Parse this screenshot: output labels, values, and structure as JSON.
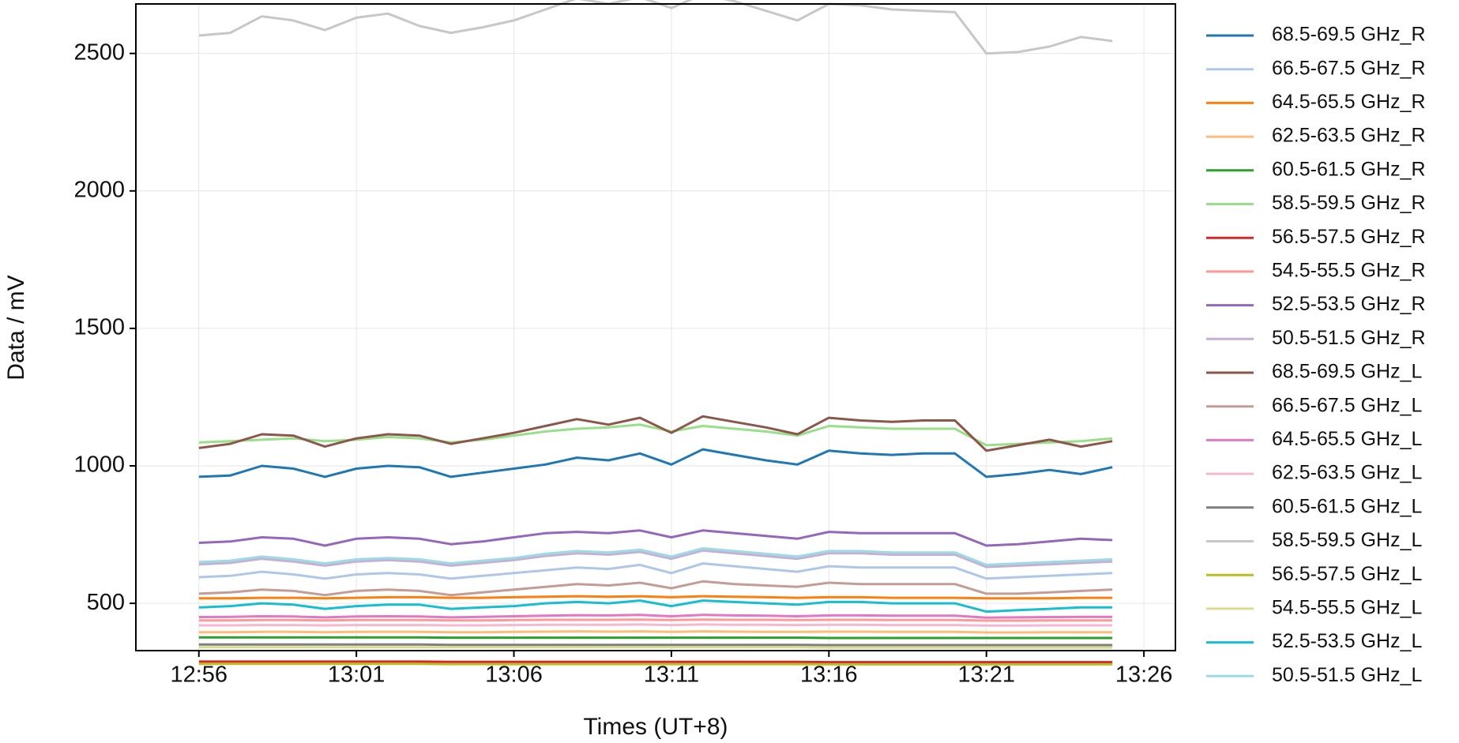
{
  "chart_data": {
    "type": "line",
    "xlabel": "Times (UT+8)",
    "ylabel": "Data / mV",
    "x": [
      "12:56",
      "12:57",
      "12:58",
      "12:59",
      "13:00",
      "13:01",
      "13:02",
      "13:03",
      "13:04",
      "13:05",
      "13:06",
      "13:07",
      "13:08",
      "13:09",
      "13:10",
      "13:11",
      "13:12",
      "13:13",
      "13:14",
      "13:15",
      "13:16",
      "13:17",
      "13:18",
      "13:19",
      "13:20",
      "13:21",
      "13:22",
      "13:23",
      "13:24",
      "13:25"
    ],
    "xlim": [
      "12:54",
      "13:27"
    ],
    "xticks": [
      "12:56",
      "13:01",
      "13:06",
      "13:11",
      "13:16",
      "13:21",
      "13:26"
    ],
    "ylim": [
      328,
      2680
    ],
    "yticks": [
      500,
      1000,
      1500,
      2000,
      2500
    ],
    "grid": true,
    "legend": "right",
    "series": [
      {
        "name": "68.5-69.5 GHz_R",
        "color": "#1f77b4",
        "values": [
          960,
          965,
          1000,
          990,
          960,
          990,
          1000,
          995,
          960,
          975,
          990,
          1005,
          1030,
          1020,
          1045,
          1005,
          1060,
          1040,
          1020,
          1005,
          1055,
          1045,
          1040,
          1045,
          1045,
          960,
          970,
          985,
          970,
          995
        ]
      },
      {
        "name": "66.5-67.5 GHz_R",
        "color": "#aec7e8",
        "values": [
          595,
          600,
          615,
          605,
          590,
          605,
          610,
          605,
          590,
          600,
          610,
          620,
          630,
          625,
          640,
          610,
          645,
          635,
          625,
          615,
          635,
          630,
          630,
          630,
          630,
          590,
          595,
          600,
          605,
          610
        ]
      },
      {
        "name": "64.5-65.5 GHz_R",
        "color": "#ff7f0e",
        "values": [
          518,
          518,
          520,
          520,
          518,
          520,
          522,
          522,
          520,
          520,
          522,
          524,
          526,
          524,
          526,
          522,
          526,
          524,
          522,
          520,
          522,
          522,
          520,
          520,
          520,
          518,
          518,
          518,
          520,
          520
        ]
      },
      {
        "name": "62.5-63.5 GHz_R",
        "color": "#ffbb78",
        "values": [
          395,
          395,
          396,
          396,
          395,
          396,
          396,
          396,
          395,
          395,
          396,
          397,
          398,
          397,
          398,
          396,
          398,
          397,
          396,
          396,
          397,
          397,
          396,
          396,
          396,
          394,
          394,
          395,
          395,
          395
        ]
      },
      {
        "name": "60.5-61.5 GHz_R",
        "color": "#2ca02c",
        "values": [
          376,
          376,
          376,
          376,
          376,
          376,
          376,
          376,
          375,
          375,
          375,
          375,
          375,
          375,
          375,
          375,
          375,
          375,
          375,
          375,
          374,
          374,
          374,
          374,
          374,
          374,
          374,
          374,
          374,
          374
        ]
      },
      {
        "name": "58.5-59.5 GHz_R",
        "color": "#98df8a",
        "values": [
          1085,
          1090,
          1095,
          1100,
          1090,
          1095,
          1105,
          1100,
          1085,
          1095,
          1110,
          1125,
          1135,
          1140,
          1150,
          1125,
          1145,
          1135,
          1125,
          1110,
          1145,
          1140,
          1135,
          1135,
          1135,
          1075,
          1080,
          1085,
          1090,
          1100
        ]
      },
      {
        "name": "56.5-57.5 GHz_R",
        "color": "#d62728",
        "values": [
          288,
          288,
          288,
          288,
          288,
          288,
          288,
          288,
          287,
          287,
          287,
          287,
          287,
          287,
          287,
          287,
          287,
          287,
          287,
          287,
          286,
          286,
          286,
          286,
          286,
          286,
          286,
          286,
          286,
          286
        ]
      },
      {
        "name": "54.5-55.5 GHz_R",
        "color": "#ff9896",
        "values": [
          438,
          438,
          439,
          439,
          438,
          439,
          439,
          439,
          438,
          438,
          439,
          440,
          440,
          440,
          441,
          439,
          441,
          440,
          440,
          439,
          440,
          440,
          439,
          439,
          439,
          437,
          437,
          438,
          438,
          438
        ]
      },
      {
        "name": "52.5-53.5 GHz_R",
        "color": "#9467bd",
        "values": [
          720,
          725,
          740,
          735,
          710,
          735,
          740,
          735,
          715,
          725,
          740,
          755,
          760,
          755,
          765,
          740,
          765,
          755,
          745,
          735,
          760,
          755,
          755,
          755,
          755,
          710,
          715,
          725,
          735,
          730
        ]
      },
      {
        "name": "50.5-51.5 GHz_R",
        "color": "#c5b0d5",
        "values": [
          642,
          647,
          662,
          652,
          637,
          652,
          657,
          652,
          637,
          647,
          657,
          672,
          682,
          677,
          687,
          662,
          692,
          682,
          672,
          662,
          682,
          682,
          677,
          677,
          677,
          632,
          637,
          642,
          647,
          652
        ]
      },
      {
        "name": "68.5-69.5 GHz_L",
        "color": "#8c564b",
        "values": [
          1065,
          1080,
          1115,
          1110,
          1070,
          1100,
          1115,
          1110,
          1080,
          1100,
          1120,
          1145,
          1170,
          1150,
          1175,
          1120,
          1180,
          1160,
          1140,
          1115,
          1175,
          1165,
          1160,
          1165,
          1165,
          1055,
          1075,
          1095,
          1070,
          1090
        ]
      },
      {
        "name": "66.5-67.5 GHz_L",
        "color": "#c49c94",
        "values": [
          535,
          540,
          550,
          545,
          530,
          545,
          550,
          545,
          530,
          540,
          550,
          560,
          570,
          565,
          575,
          555,
          580,
          570,
          565,
          560,
          575,
          570,
          570,
          570,
          570,
          535,
          535,
          540,
          545,
          550
        ]
      },
      {
        "name": "64.5-65.5 GHz_L",
        "color": "#e377c2",
        "values": [
          450,
          451,
          453,
          452,
          449,
          452,
          453,
          452,
          449,
          451,
          453,
          455,
          457,
          456,
          458,
          453,
          458,
          456,
          455,
          453,
          456,
          456,
          455,
          455,
          455,
          448,
          449,
          450,
          451,
          451
        ]
      },
      {
        "name": "62.5-63.5 GHz_L",
        "color": "#f7b6d2",
        "values": [
          420,
          420,
          421,
          421,
          420,
          421,
          421,
          421,
          420,
          420,
          421,
          422,
          422,
          422,
          423,
          421,
          423,
          422,
          422,
          421,
          422,
          422,
          421,
          421,
          421,
          419,
          419,
          420,
          420,
          420
        ]
      },
      {
        "name": "60.5-61.5 GHz_L",
        "color": "#7f7f7f",
        "values": [
          350,
          350,
          350,
          350,
          350,
          350,
          350,
          350,
          349,
          349,
          349,
          349,
          349,
          349,
          349,
          349,
          349,
          349,
          349,
          349,
          348,
          348,
          348,
          348,
          348,
          348,
          348,
          348,
          348,
          348
        ]
      },
      {
        "name": "58.5-59.5 GHz_L",
        "color": "#c7c7c7",
        "values": [
          2565,
          2575,
          2635,
          2620,
          2585,
          2630,
          2645,
          2600,
          2575,
          2595,
          2620,
          2660,
          2700,
          2680,
          2705,
          2665,
          2715,
          2690,
          2655,
          2620,
          2680,
          2675,
          2660,
          2655,
          2650,
          2500,
          2505,
          2525,
          2560,
          2545
        ]
      },
      {
        "name": "56.5-57.5 GHz_L",
        "color": "#bcbd22",
        "values": [
          280,
          280,
          280,
          280,
          280,
          280,
          280,
          280,
          279,
          279,
          279,
          279,
          279,
          279,
          279,
          279,
          279,
          279,
          279,
          279,
          278,
          278,
          278,
          278,
          278,
          278,
          278,
          278,
          278,
          278
        ]
      },
      {
        "name": "54.5-55.5 GHz_L",
        "color": "#dbdb8d",
        "values": [
          340,
          340,
          340,
          340,
          340,
          340,
          340,
          340,
          340,
          340,
          340,
          340,
          340,
          340,
          340,
          340,
          340,
          340,
          340,
          340,
          339,
          339,
          339,
          339,
          339,
          339,
          339,
          339,
          339,
          339
        ]
      },
      {
        "name": "52.5-53.5 GHz_L",
        "color": "#17becf",
        "values": [
          485,
          490,
          500,
          495,
          480,
          490,
          495,
          495,
          480,
          485,
          490,
          500,
          505,
          500,
          510,
          490,
          510,
          505,
          500,
          495,
          505,
          505,
          500,
          500,
          500,
          470,
          475,
          480,
          485,
          485
        ]
      },
      {
        "name": "50.5-51.5 GHz_L",
        "color": "#9edae5",
        "values": [
          650,
          655,
          670,
          660,
          645,
          660,
          665,
          660,
          645,
          655,
          665,
          680,
          690,
          685,
          695,
          670,
          700,
          690,
          680,
          670,
          690,
          690,
          685,
          685,
          685,
          640,
          645,
          650,
          655,
          660
        ]
      }
    ]
  }
}
